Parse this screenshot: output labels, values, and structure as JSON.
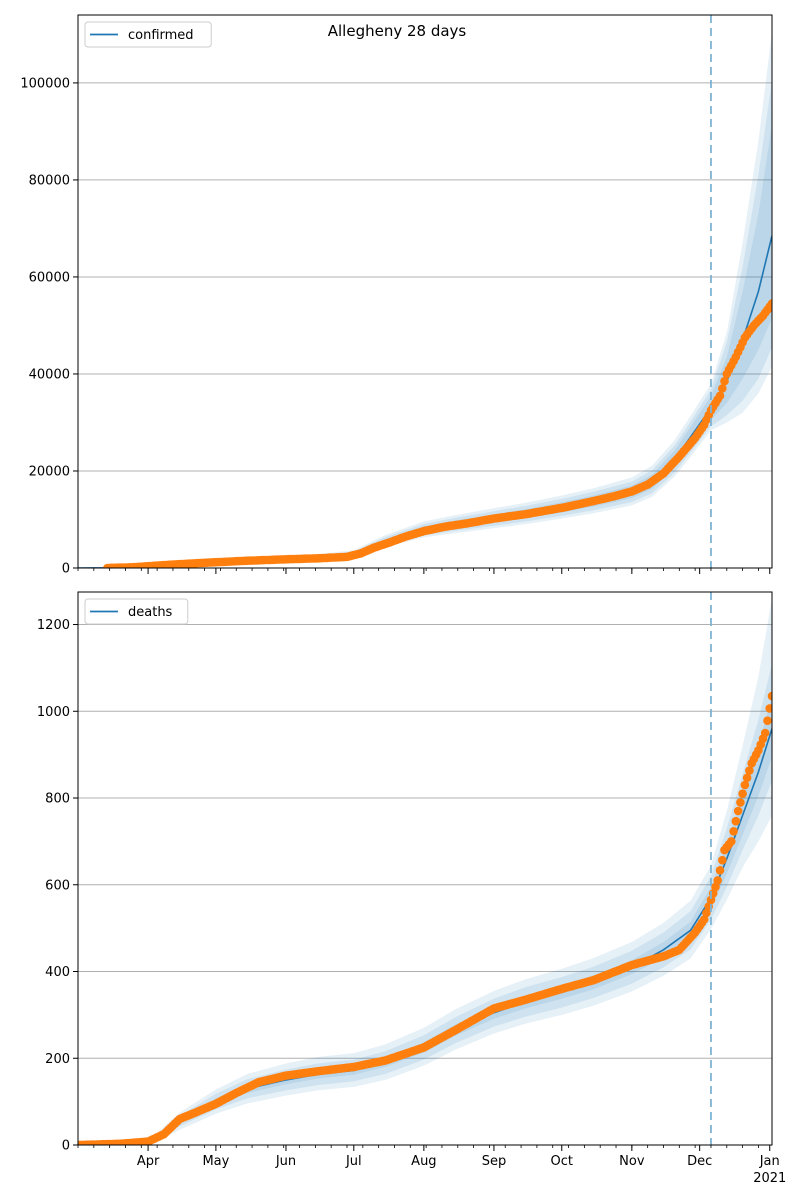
{
  "figure": {
    "title": "Allegheny 28 days"
  },
  "colors": {
    "model": "#1f77b4",
    "observed": "#ff7f0e",
    "band": "#1f77b4",
    "forecast_line": "#7fb3d5",
    "grid": "#b0b0b0"
  },
  "chart_data": [
    {
      "type": "line",
      "legend": "confirmed",
      "legend_loc": "upper-left",
      "grid_y": true,
      "x_range": [
        "2020-03-01",
        "2021-01-02"
      ],
      "ylim": [
        0,
        114000
      ],
      "yticks": [
        0,
        20000,
        40000,
        60000,
        80000,
        100000
      ],
      "forecast_start": "2020-12-06",
      "model": {
        "x": [
          "2020-03-01",
          "2020-03-15",
          "2020-04-01",
          "2020-04-15",
          "2020-05-01",
          "2020-05-15",
          "2020-06-01",
          "2020-06-15",
          "2020-07-01",
          "2020-07-15",
          "2020-08-01",
          "2020-08-15",
          "2020-09-01",
          "2020-09-15",
          "2020-10-01",
          "2020-10-15",
          "2020-11-01",
          "2020-11-10",
          "2020-11-20",
          "2020-11-27",
          "2020-12-06",
          "2020-12-13",
          "2020-12-20",
          "2020-12-27",
          "2021-01-02"
        ],
        "y": [
          10,
          40,
          400,
          900,
          1300,
          1600,
          1900,
          2100,
          2800,
          5500,
          7900,
          9000,
          10200,
          11200,
          12500,
          13800,
          15700,
          17800,
          22500,
          27000,
          33000,
          38500,
          47000,
          57000,
          68500
        ],
        "band_offsets": [
          {
            "lo": [
              0,
              0,
              0,
              50,
              100,
              150,
              200,
              250,
              300,
              500,
              700,
              800,
              900,
              950,
              1050,
              1150,
              1300,
              1450,
              1800,
              2100,
              2500,
              4500,
              8000,
              12000,
              17000
            ],
            "hi": [
              0,
              0,
              0,
              50,
              100,
              150,
              200,
              250,
              300,
              500,
              700,
              800,
              900,
              950,
              1050,
              1150,
              1300,
              1450,
              1800,
              2100,
              2500,
              5000,
              10000,
              16000,
              23000
            ]
          },
          {
            "lo": [
              0,
              0,
              0,
              100,
              200,
              300,
              400,
              500,
              600,
              900,
              1200,
              1350,
              1500,
              1600,
              1750,
              1900,
              2100,
              2350,
              2800,
              3200,
              3800,
              7000,
              12500,
              18000,
              23000
            ],
            "hi": [
              0,
              0,
              0,
              100,
              200,
              300,
              400,
              500,
              600,
              900,
              1200,
              1350,
              1500,
              1600,
              1750,
              1900,
              2100,
              2350,
              2800,
              3200,
              3800,
              8000,
              15000,
              24000,
              32000
            ]
          },
          {
            "lo": [
              0,
              0,
              0,
              100,
              250,
              400,
              550,
              700,
              850,
              1200,
              1600,
              1800,
              2000,
              2150,
              2300,
              2500,
              2800,
              3100,
              3600,
              4100,
              4600,
              8500,
              15000,
              21000,
              27000
            ],
            "hi": [
              0,
              0,
              0,
              150,
              300,
              450,
              600,
              750,
              900,
              1300,
              1700,
              1900,
              2100,
              2250,
              2450,
              2650,
              2950,
              3300,
              3900,
              4400,
              5000,
              10000,
              20000,
              31000,
              42000
            ]
          }
        ]
      },
      "observed": {
        "x": [
          "2020-03-14",
          "2020-03-25",
          "2020-04-05",
          "2020-04-15",
          "2020-05-01",
          "2020-05-15",
          "2020-06-01",
          "2020-06-15",
          "2020-06-28",
          "2020-07-04",
          "2020-07-10",
          "2020-07-17",
          "2020-07-24",
          "2020-08-01",
          "2020-08-10",
          "2020-08-20",
          "2020-09-01",
          "2020-09-15",
          "2020-10-01",
          "2020-10-15",
          "2020-10-25",
          "2020-11-01",
          "2020-11-08",
          "2020-11-15",
          "2020-11-22",
          "2020-11-29",
          "2020-12-03",
          "2020-12-06",
          "2020-12-10",
          "2020-12-13",
          "2020-12-17",
          "2020-12-21",
          "2020-12-25",
          "2020-12-29",
          "2021-01-02"
        ],
        "y": [
          10,
          150,
          500,
          800,
          1200,
          1500,
          1800,
          2000,
          2300,
          3000,
          4200,
          5300,
          6500,
          7600,
          8500,
          9200,
          10200,
          11100,
          12400,
          13800,
          14900,
          15800,
          17200,
          19500,
          23000,
          26800,
          29500,
          32500,
          35500,
          40000,
          43500,
          47500,
          50000,
          52000,
          54500
        ]
      }
    },
    {
      "type": "line",
      "legend": "deaths",
      "legend_loc": "upper-left",
      "grid_y": true,
      "x_range": [
        "2020-03-01",
        "2021-01-02"
      ],
      "ylim": [
        0,
        1275
      ],
      "yticks": [
        0,
        200,
        400,
        600,
        800,
        1000,
        1200
      ],
      "xtick_labels": [
        "Apr",
        "May",
        "Jun",
        "Jul",
        "Aug",
        "Sep",
        "Oct",
        "Nov",
        "Dec",
        "Jan"
      ],
      "xtick_dates": [
        "2020-04-01",
        "2020-05-01",
        "2020-06-01",
        "2020-07-01",
        "2020-08-01",
        "2020-09-01",
        "2020-10-01",
        "2020-11-01",
        "2020-12-01",
        "2021-01-01"
      ],
      "x_year_label": "2021",
      "forecast_start": "2020-12-06",
      "model": {
        "x": [
          "2020-03-01",
          "2020-03-25",
          "2020-04-05",
          "2020-04-15",
          "2020-05-01",
          "2020-05-15",
          "2020-06-01",
          "2020-06-15",
          "2020-07-01",
          "2020-07-15",
          "2020-08-01",
          "2020-08-15",
          "2020-09-01",
          "2020-09-15",
          "2020-10-01",
          "2020-10-15",
          "2020-11-01",
          "2020-11-15",
          "2020-11-27",
          "2020-12-06",
          "2020-12-13",
          "2020-12-20",
          "2020-12-27",
          "2021-01-02"
        ],
        "y": [
          0,
          2,
          18,
          55,
          100,
          130,
          150,
          163,
          172,
          190,
          225,
          265,
          305,
          330,
          352,
          375,
          410,
          450,
          495,
          570,
          660,
          760,
          860,
          960
        ],
        "band_offsets": [
          {
            "lo": [
              0,
              0,
              3,
              6,
              8,
              10,
              10,
              10,
              10,
              10,
              12,
              13,
              14,
              15,
              15,
              16,
              16,
              18,
              20,
              25,
              35,
              45,
              55,
              65
            ],
            "hi": [
              0,
              0,
              3,
              6,
              8,
              10,
              10,
              10,
              10,
              10,
              12,
              13,
              14,
              15,
              15,
              16,
              16,
              18,
              20,
              25,
              35,
              50,
              60,
              75
            ]
          },
          {
            "lo": [
              0,
              0,
              6,
              12,
              18,
              22,
              24,
              25,
              25,
              26,
              28,
              30,
              32,
              34,
              35,
              36,
              38,
              40,
              44,
              50,
              65,
              80,
              100,
              120
            ],
            "hi": [
              0,
              0,
              6,
              12,
              18,
              22,
              24,
              25,
              25,
              26,
              28,
              30,
              32,
              34,
              35,
              36,
              38,
              40,
              44,
              50,
              70,
              95,
              120,
              150
            ]
          },
          {
            "lo": [
              0,
              0,
              10,
              20,
              28,
              34,
              36,
              37,
              38,
              40,
              42,
              45,
              48,
              50,
              52,
              54,
              56,
              60,
              65,
              72,
              95,
              120,
              160,
              200
            ],
            "hi": [
              0,
              0,
              10,
              20,
              28,
              34,
              38,
              40,
              40,
              42,
              45,
              48,
              50,
              52,
              54,
              56,
              58,
              62,
              68,
              75,
              110,
              160,
              220,
              300
            ]
          }
        ]
      },
      "observed": {
        "x": [
          "2020-03-01",
          "2020-03-20",
          "2020-04-01",
          "2020-04-08",
          "2020-04-15",
          "2020-04-22",
          "2020-05-01",
          "2020-05-10",
          "2020-05-20",
          "2020-06-01",
          "2020-06-15",
          "2020-07-01",
          "2020-07-15",
          "2020-08-01",
          "2020-08-15",
          "2020-09-01",
          "2020-09-15",
          "2020-10-01",
          "2020-10-15",
          "2020-11-01",
          "2020-11-15",
          "2020-11-22",
          "2020-11-29",
          "2020-12-03",
          "2020-12-06",
          "2020-12-09",
          "2020-12-12",
          "2020-12-15",
          "2020-12-18",
          "2020-12-21",
          "2020-12-24",
          "2020-12-27",
          "2020-12-30",
          "2021-01-02"
        ],
        "y": [
          0,
          3,
          8,
          25,
          60,
          75,
          95,
          120,
          145,
          160,
          170,
          180,
          195,
          225,
          265,
          315,
          335,
          360,
          380,
          415,
          435,
          450,
          490,
          520,
          565,
          610,
          680,
          700,
          770,
          830,
          880,
          910,
          950,
          1035
        ]
      }
    }
  ]
}
